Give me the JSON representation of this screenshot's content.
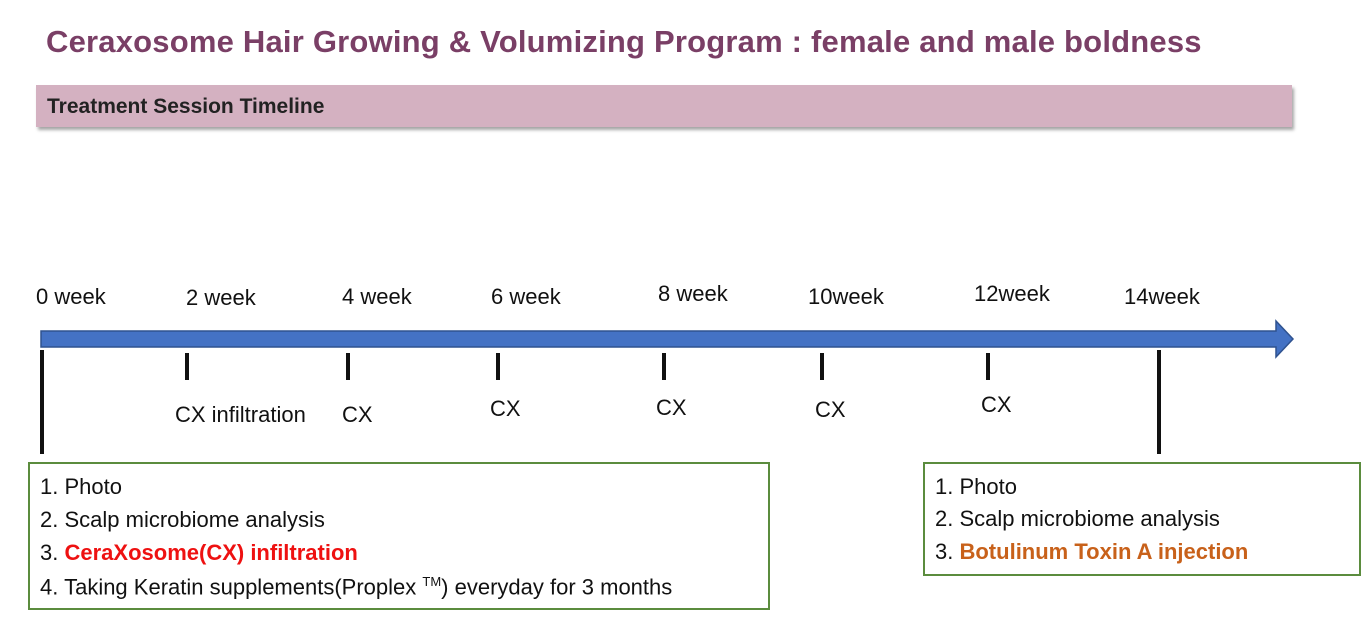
{
  "title": "Ceraxosome Hair Growing & Volumizing Program : female and male boldness",
  "banner": "Treatment Session Timeline",
  "weeks": [
    "0 week",
    "2 week",
    "4 week",
    "6 week",
    "8 week",
    "10week",
    "12week",
    "14week"
  ],
  "session_labels": [
    "CX infiltration",
    "CX",
    "CX",
    "CX",
    "CX",
    "CX"
  ],
  "left_box": {
    "items": [
      {
        "num": "1.",
        "text": "Photo"
      },
      {
        "num": "2.",
        "text": "Scalp microbiome analysis"
      },
      {
        "num": "3.",
        "text": "CeraXosome(CX) infiltration"
      },
      {
        "num": "4.",
        "text_before": "Taking Keratin supplements(Proplex",
        "tm": "TM",
        "text_after": ") everyday for 3 months"
      }
    ]
  },
  "right_box": {
    "items": [
      {
        "num": "1.",
        "text": "Photo"
      },
      {
        "num": "2.",
        "text": "Scalp microbiome analysis"
      },
      {
        "num": "3.",
        "text": "Botulinum Toxin A injection"
      }
    ]
  },
  "colors": {
    "title": "#7a3f66",
    "banner": "#d4b1c1",
    "arrow": "#4472c4",
    "box_border": "#5b8c3e",
    "highlight_red": "#ee1111",
    "highlight_orange": "#c8611a"
  }
}
